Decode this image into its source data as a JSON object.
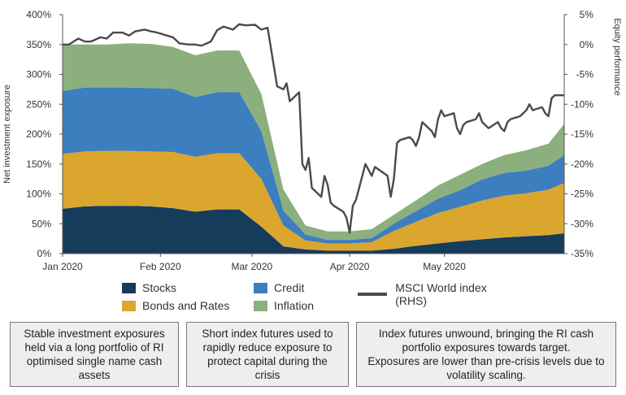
{
  "chart_data": {
    "type": "area",
    "x_ticks": [
      "Jan 2020",
      "Feb 2020",
      "Mar 2020",
      "Apr 2020",
      "May 2020"
    ],
    "y_left": {
      "label": "Net investment exposure",
      "ticks": [
        "0%",
        "50%",
        "100%",
        "150%",
        "200%",
        "250%",
        "300%",
        "350%",
        "400%"
      ],
      "lim": [
        0,
        400
      ]
    },
    "y_right": {
      "label": "Equity performance",
      "ticks": [
        "5%",
        "0%",
        "-5%",
        "-10%",
        "-15%",
        "-20%",
        "-25%",
        "-30%",
        "-35%"
      ],
      "lim": [
        -35,
        5
      ]
    },
    "x_range": [
      "2020-01-01",
      "2020-06-08"
    ],
    "area_x": [
      "2020-01-01",
      "2020-01-08",
      "2020-01-15",
      "2020-01-22",
      "2020-01-29",
      "2020-02-05",
      "2020-02-12",
      "2020-02-19",
      "2020-02-26",
      "2020-03-04",
      "2020-03-11",
      "2020-03-18",
      "2020-03-25",
      "2020-04-01",
      "2020-04-08",
      "2020-04-15",
      "2020-04-22",
      "2020-04-29",
      "2020-05-06",
      "2020-05-13",
      "2020-05-20",
      "2020-05-27",
      "2020-06-03",
      "2020-06-08"
    ],
    "series": [
      {
        "name": "Stocks",
        "color": "#163c5c",
        "values": [
          75,
          79,
          80,
          80,
          79,
          76,
          70,
          74,
          74,
          45,
          12,
          7,
          5,
          5,
          5,
          8,
          13,
          17,
          21,
          24,
          27,
          29,
          31,
          34
        ]
      },
      {
        "name": "Bonds and Rates",
        "color": "#dba62e",
        "values": [
          92,
          92,
          92,
          92,
          92,
          94,
          92,
          94,
          94,
          80,
          35,
          15,
          12,
          12,
          14,
          30,
          40,
          51,
          57,
          65,
          70,
          72,
          76,
          84
        ]
      },
      {
        "name": "Credit",
        "color": "#3d7ebf",
        "values": [
          105,
          107,
          106,
          106,
          106,
          106,
          100,
          102,
          102,
          80,
          25,
          10,
          6,
          6,
          7,
          12,
          18,
          24,
          28,
          35,
          38,
          38,
          40,
          47
        ]
      },
      {
        "name": "Inflation",
        "color": "#8caf7e",
        "values": [
          78,
          72,
          72,
          74,
          74,
          70,
          70,
          70,
          70,
          62,
          35,
          15,
          14,
          14,
          15,
          15,
          18,
          22,
          26,
          26,
          30,
          34,
          37,
          52
        ]
      }
    ],
    "line": {
      "name": "MSCI World index (RHS)",
      "color": "#4a4a4a",
      "x": [
        "2020-01-01",
        "2020-01-03",
        "2020-01-06",
        "2020-01-08",
        "2020-01-10",
        "2020-01-13",
        "2020-01-15",
        "2020-01-17",
        "2020-01-20",
        "2020-01-22",
        "2020-01-24",
        "2020-01-27",
        "2020-01-29",
        "2020-01-31",
        "2020-02-03",
        "2020-02-05",
        "2020-02-07",
        "2020-02-10",
        "2020-02-12",
        "2020-02-14",
        "2020-02-17",
        "2020-02-19",
        "2020-02-21",
        "2020-02-24",
        "2020-02-26",
        "2020-02-28",
        "2020-03-02",
        "2020-03-04",
        "2020-03-06",
        "2020-03-09",
        "2020-03-11",
        "2020-03-12",
        "2020-03-13",
        "2020-03-16",
        "2020-03-17",
        "2020-03-18",
        "2020-03-19",
        "2020-03-20",
        "2020-03-23",
        "2020-03-24",
        "2020-03-25",
        "2020-03-26",
        "2020-03-27",
        "2020-03-30",
        "2020-03-31",
        "2020-04-01",
        "2020-04-02",
        "2020-04-03",
        "2020-04-06",
        "2020-04-07",
        "2020-04-08",
        "2020-04-09",
        "2020-04-13",
        "2020-04-14",
        "2020-04-15",
        "2020-04-16",
        "2020-04-17",
        "2020-04-20",
        "2020-04-21",
        "2020-04-22",
        "2020-04-23",
        "2020-04-24",
        "2020-04-27",
        "2020-04-28",
        "2020-04-29",
        "2020-04-30",
        "2020-05-01",
        "2020-05-04",
        "2020-05-05",
        "2020-05-06",
        "2020-05-07",
        "2020-05-08",
        "2020-05-11",
        "2020-05-12",
        "2020-05-13",
        "2020-05-14",
        "2020-05-15",
        "2020-05-18",
        "2020-05-19",
        "2020-05-20",
        "2020-05-21",
        "2020-05-22",
        "2020-05-25",
        "2020-05-26",
        "2020-05-27",
        "2020-05-28",
        "2020-05-29",
        "2020-06-01",
        "2020-06-02",
        "2020-06-03",
        "2020-06-04",
        "2020-06-05",
        "2020-06-08"
      ],
      "values": [
        0,
        0,
        1,
        0.5,
        0.5,
        1.2,
        1.0,
        2.0,
        2.0,
        1.5,
        2.2,
        2.5,
        2.2,
        2.0,
        1.5,
        1.2,
        0.2,
        0.0,
        0.0,
        -0.2,
        0.5,
        2.4,
        3.0,
        2.5,
        3.4,
        3.2,
        3.3,
        2.5,
        2.8,
        -7.0,
        -7.5,
        -6.5,
        -9.5,
        -8.0,
        -20.0,
        -21.0,
        -19.0,
        -24.0,
        -25.5,
        -22.0,
        -23.5,
        -26.5,
        -27.0,
        -28.0,
        -29.0,
        -31.5,
        -27.0,
        -26.0,
        -20.0,
        -21.0,
        -22.0,
        -20.5,
        -22.0,
        -25.5,
        -22.5,
        -16.5,
        -16.0,
        -15.5,
        -16.0,
        -17.0,
        -15.5,
        -13.0,
        -14.5,
        -15.5,
        -12.5,
        -11.0,
        -12.0,
        -11.5,
        -14.0,
        -15.0,
        -13.5,
        -13.0,
        -12.5,
        -11.5,
        -13.0,
        -13.5,
        -14.0,
        -13.0,
        -14.0,
        -14.5,
        -13.0,
        -12.5,
        -12.0,
        -11.5,
        -11.0,
        -10.0,
        -11.0,
        -10.5,
        -11.5,
        -12.0,
        -9.0,
        -8.5,
        -8.5
      ]
    }
  },
  "legend": {
    "stocks": "Stocks",
    "credit": "Credit",
    "msci": "MSCI World index (RHS)",
    "bonds": "Bonds and Rates",
    "inflation": "Inflation"
  },
  "callouts": {
    "left": "Stable investment exposures held via a long portfolio of RI optimised single name cash assets",
    "middle": "Short index futures used to rapidly reduce exposure to protect capital during the crisis",
    "right_1": "Index futures unwound, bringing the RI cash portfolio exposures towards target.",
    "right_2": "Exposures are lower than pre-crisis levels due to volatility scaling."
  }
}
